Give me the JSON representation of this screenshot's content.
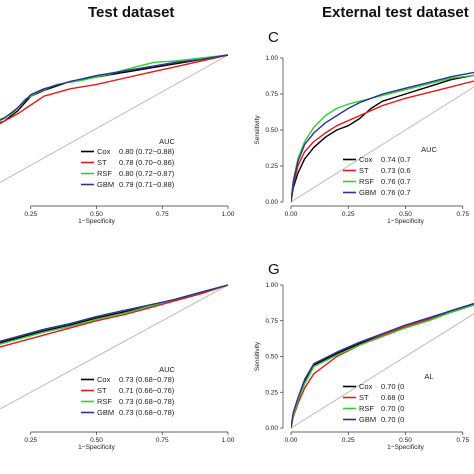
{
  "headers": [
    "Test dataset",
    "External test dataset"
  ],
  "chart_data": [
    {
      "type": "line",
      "panel_letter": "",
      "xlabel": "1−Specificity",
      "ylabel": "",
      "xlim": [
        0,
        1
      ],
      "ylim": [
        0,
        1
      ],
      "xticks": [
        "0.25",
        "0.50",
        "0.75",
        "1.00"
      ],
      "yticks": [],
      "legend_title": "AUC",
      "legend": [
        {
          "model": "Cox",
          "auc": "0.80 (0.72−0.88)"
        },
        {
          "model": "ST",
          "auc": "0.78 (0.70−0.86)"
        },
        {
          "model": "RSF",
          "auc": "0.80 (0.72−0.87)"
        },
        {
          "model": "GBM",
          "auc": "0.79 (0.71−0.88)"
        }
      ],
      "series": [
        {
          "name": "Cox",
          "color": "#000000",
          "x": [
            0,
            0.02,
            0.05,
            0.08,
            0.1,
            0.15,
            0.2,
            0.25,
            0.3,
            0.4,
            0.5,
            0.6,
            0.7,
            0.8,
            0.9,
            1.0
          ],
          "y": [
            0.3,
            0.33,
            0.42,
            0.5,
            0.52,
            0.55,
            0.62,
            0.72,
            0.76,
            0.82,
            0.85,
            0.88,
            0.91,
            0.94,
            0.97,
            1.0
          ]
        },
        {
          "name": "ST",
          "color": "#e31a1c",
          "x": [
            0,
            0.03,
            0.06,
            0.1,
            0.15,
            0.2,
            0.25,
            0.3,
            0.4,
            0.5,
            0.6,
            0.7,
            0.8,
            0.9,
            1.0
          ],
          "y": [
            0.32,
            0.38,
            0.45,
            0.5,
            0.55,
            0.6,
            0.66,
            0.72,
            0.77,
            0.8,
            0.84,
            0.88,
            0.92,
            0.96,
            1.0
          ]
        },
        {
          "name": "RSF",
          "color": "#33cc33",
          "x": [
            0,
            0.02,
            0.05,
            0.08,
            0.12,
            0.18,
            0.23,
            0.28,
            0.35,
            0.45,
            0.55,
            0.65,
            0.72,
            0.8,
            0.9,
            1.0
          ],
          "y": [
            0.3,
            0.35,
            0.45,
            0.52,
            0.55,
            0.6,
            0.7,
            0.75,
            0.8,
            0.83,
            0.87,
            0.92,
            0.95,
            0.96,
            0.98,
            1.0
          ]
        },
        {
          "name": "GBM",
          "color": "#2e3192",
          "x": [
            0,
            0.02,
            0.05,
            0.08,
            0.1,
            0.15,
            0.2,
            0.25,
            0.3,
            0.4,
            0.5,
            0.6,
            0.7,
            0.8,
            0.9,
            1.0
          ],
          "y": [
            0.31,
            0.35,
            0.44,
            0.51,
            0.53,
            0.57,
            0.64,
            0.73,
            0.77,
            0.82,
            0.86,
            0.89,
            0.92,
            0.95,
            0.97,
            1.0
          ]
        }
      ]
    },
    {
      "type": "line",
      "panel_letter": "C",
      "xlabel": "1−Specificity",
      "ylabel": "Sensitivity",
      "xlim": [
        0,
        1
      ],
      "ylim": [
        0,
        1
      ],
      "xticks": [
        "0.00",
        "0.25",
        "0.50",
        "0.75"
      ],
      "yticks": [
        "0.00",
        "0.25",
        "0.50",
        "0.75",
        "1.00"
      ],
      "legend_title": "AUC",
      "legend": [
        {
          "model": "Cox",
          "auc": "0.74 (0.7"
        },
        {
          "model": "ST",
          "auc": "0.73 (0.6"
        },
        {
          "model": "RSF",
          "auc": "0.76 (0.7"
        },
        {
          "model": "GBM",
          "auc": "0.76 (0.7"
        }
      ],
      "series": [
        {
          "name": "Cox",
          "color": "#000000",
          "x": [
            0,
            0.01,
            0.03,
            0.06,
            0.1,
            0.15,
            0.2,
            0.25,
            0.3,
            0.35,
            0.4,
            0.5,
            0.6,
            0.7,
            0.8,
            0.9,
            1.0
          ],
          "y": [
            0,
            0.1,
            0.2,
            0.3,
            0.38,
            0.45,
            0.5,
            0.53,
            0.58,
            0.65,
            0.7,
            0.75,
            0.8,
            0.85,
            0.88,
            0.91,
            0.93
          ]
        },
        {
          "name": "ST",
          "color": "#e31a1c",
          "x": [
            0,
            0.01,
            0.03,
            0.06,
            0.1,
            0.15,
            0.2,
            0.3,
            0.4,
            0.5,
            0.6,
            0.7,
            0.8,
            0.9,
            1.0
          ],
          "y": [
            0,
            0.12,
            0.25,
            0.35,
            0.42,
            0.48,
            0.53,
            0.6,
            0.67,
            0.72,
            0.76,
            0.8,
            0.84,
            0.88,
            0.92
          ]
        },
        {
          "name": "RSF",
          "color": "#33cc33",
          "x": [
            0,
            0.01,
            0.03,
            0.06,
            0.1,
            0.15,
            0.2,
            0.25,
            0.3,
            0.4,
            0.5,
            0.6,
            0.7,
            0.8,
            0.9,
            1.0
          ],
          "y": [
            0,
            0.15,
            0.3,
            0.42,
            0.52,
            0.6,
            0.65,
            0.68,
            0.7,
            0.74,
            0.78,
            0.82,
            0.86,
            0.88,
            0.91,
            0.94
          ]
        },
        {
          "name": "GBM",
          "color": "#2e3192",
          "x": [
            0,
            0.01,
            0.03,
            0.06,
            0.1,
            0.15,
            0.2,
            0.25,
            0.3,
            0.4,
            0.5,
            0.6,
            0.7,
            0.8,
            0.9,
            1.0
          ],
          "y": [
            0,
            0.14,
            0.28,
            0.4,
            0.48,
            0.55,
            0.6,
            0.65,
            0.69,
            0.75,
            0.79,
            0.83,
            0.87,
            0.9,
            0.93,
            0.95
          ]
        }
      ]
    },
    {
      "type": "line",
      "panel_letter": "",
      "xlabel": "1−Specificity",
      "ylabel": "",
      "xlim": [
        0,
        1
      ],
      "ylim": [
        0,
        1
      ],
      "xticks": [
        "0.25",
        "0.50",
        "0.75",
        "1.00"
      ],
      "yticks": [],
      "legend_title": "AUC",
      "legend": [
        {
          "model": "Cox",
          "auc": "0.73 (0.68−0.78)"
        },
        {
          "model": "ST",
          "auc": "0.71 (0.66−0.76)"
        },
        {
          "model": "RSF",
          "auc": "0.73 (0.68−0.78)"
        },
        {
          "model": "GBM",
          "auc": "0.73 (0.68−0.78)"
        }
      ],
      "series": [
        {
          "name": "Cox",
          "color": "#000000",
          "x": [
            0,
            0.03,
            0.05,
            0.07,
            0.1,
            0.2,
            0.3,
            0.4,
            0.5,
            0.6,
            0.7,
            0.8,
            0.9,
            1.0
          ],
          "y": [
            0.4,
            0.42,
            0.48,
            0.55,
            0.58,
            0.63,
            0.68,
            0.72,
            0.77,
            0.81,
            0.85,
            0.9,
            0.95,
            1.0
          ]
        },
        {
          "name": "ST",
          "color": "#e31a1c",
          "x": [
            0,
            0.03,
            0.05,
            0.07,
            0.1,
            0.2,
            0.3,
            0.4,
            0.5,
            0.6,
            0.7,
            0.8,
            0.9,
            1.0
          ],
          "y": [
            0.38,
            0.41,
            0.45,
            0.52,
            0.55,
            0.6,
            0.65,
            0.7,
            0.75,
            0.79,
            0.84,
            0.89,
            0.94,
            1.0
          ]
        },
        {
          "name": "RSF",
          "color": "#33cc33",
          "x": [
            0,
            0.03,
            0.05,
            0.07,
            0.1,
            0.2,
            0.3,
            0.4,
            0.5,
            0.6,
            0.7,
            0.8,
            0.9,
            1.0
          ],
          "y": [
            0.4,
            0.42,
            0.47,
            0.54,
            0.57,
            0.62,
            0.67,
            0.71,
            0.76,
            0.8,
            0.85,
            0.9,
            0.95,
            1.0
          ]
        },
        {
          "name": "GBM",
          "color": "#2e3192",
          "x": [
            0,
            0.03,
            0.05,
            0.07,
            0.1,
            0.2,
            0.3,
            0.4,
            0.5,
            0.6,
            0.7,
            0.8,
            0.9,
            1.0
          ],
          "y": [
            0.41,
            0.43,
            0.49,
            0.56,
            0.59,
            0.64,
            0.69,
            0.73,
            0.78,
            0.82,
            0.86,
            0.9,
            0.95,
            1.0
          ]
        }
      ]
    },
    {
      "type": "line",
      "panel_letter": "G",
      "xlabel": "1−Specificity",
      "ylabel": "Sensitivity",
      "xlim": [
        0,
        1
      ],
      "ylim": [
        0,
        1
      ],
      "xticks": [
        "0.00",
        "0.25",
        "0.50",
        "0.75"
      ],
      "yticks": [
        "0.00",
        "0.25",
        "0.50",
        "0.75",
        "1.00"
      ],
      "legend_title": "AL",
      "legend": [
        {
          "model": "Cox",
          "auc": "0.70 (0"
        },
        {
          "model": "ST",
          "auc": "0.68 (0"
        },
        {
          "model": "RSF",
          "auc": "0.70 (0"
        },
        {
          "model": "GBM",
          "auc": "0.70 (0"
        }
      ],
      "series": [
        {
          "name": "Cox",
          "color": "#000000",
          "x": [
            0,
            0.01,
            0.03,
            0.06,
            0.1,
            0.2,
            0.3,
            0.4,
            0.5,
            0.6,
            0.7,
            0.8,
            0.9,
            1.0
          ],
          "y": [
            0,
            0.1,
            0.2,
            0.33,
            0.44,
            0.52,
            0.59,
            0.65,
            0.71,
            0.76,
            0.82,
            0.87,
            0.92,
            0.96
          ]
        },
        {
          "name": "ST",
          "color": "#e31a1c",
          "x": [
            0,
            0.01,
            0.03,
            0.06,
            0.1,
            0.2,
            0.3,
            0.4,
            0.5,
            0.6,
            0.7,
            0.8,
            0.9,
            1.0
          ],
          "y": [
            0,
            0.08,
            0.17,
            0.28,
            0.38,
            0.5,
            0.58,
            0.65,
            0.71,
            0.76,
            0.81,
            0.86,
            0.91,
            0.95
          ]
        },
        {
          "name": "RSF",
          "color": "#33cc33",
          "x": [
            0,
            0.01,
            0.03,
            0.06,
            0.1,
            0.2,
            0.3,
            0.4,
            0.5,
            0.6,
            0.7,
            0.8,
            0.9,
            1.0
          ],
          "y": [
            0,
            0.09,
            0.19,
            0.31,
            0.43,
            0.51,
            0.58,
            0.64,
            0.7,
            0.75,
            0.81,
            0.86,
            0.91,
            0.96
          ]
        },
        {
          "name": "GBM",
          "color": "#2e3192",
          "x": [
            0,
            0.01,
            0.03,
            0.06,
            0.1,
            0.2,
            0.3,
            0.4,
            0.5,
            0.6,
            0.7,
            0.8,
            0.9,
            1.0
          ],
          "y": [
            0,
            0.11,
            0.21,
            0.34,
            0.45,
            0.53,
            0.6,
            0.66,
            0.72,
            0.77,
            0.82,
            0.87,
            0.92,
            0.96
          ]
        }
      ]
    }
  ]
}
